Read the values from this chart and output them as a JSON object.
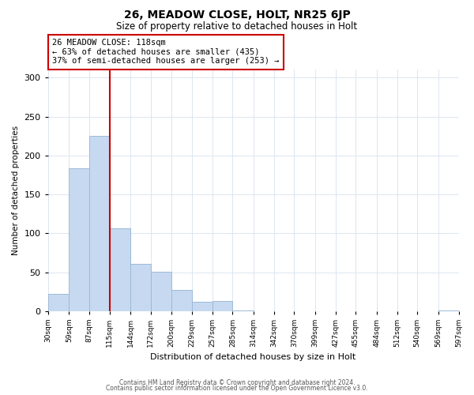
{
  "title": "26, MEADOW CLOSE, HOLT, NR25 6JP",
  "subtitle": "Size of property relative to detached houses in Holt",
  "xlabel": "Distribution of detached houses by size in Holt",
  "ylabel": "Number of detached properties",
  "bar_edges": [
    30,
    59,
    87,
    115,
    144,
    172,
    200,
    229,
    257,
    285,
    314,
    342,
    370,
    399,
    427,
    455,
    484,
    512,
    540,
    569,
    597
  ],
  "bar_heights": [
    22,
    184,
    225,
    106,
    61,
    51,
    27,
    12,
    13,
    1,
    0,
    0,
    0,
    0,
    0,
    0,
    0,
    0,
    0,
    1
  ],
  "bar_color": "#c6d9f0",
  "bar_edge_color": "#9dbad8",
  "vline_x": 115,
  "vline_color": "#cc0000",
  "annotation_title": "26 MEADOW CLOSE: 118sqm",
  "annotation_line1": "← 63% of detached houses are smaller (435)",
  "annotation_line2": "37% of semi-detached houses are larger (253) →",
  "annotation_box_color": "#ffffff",
  "annotation_box_edge": "#cc0000",
  "ylim": [
    0,
    310
  ],
  "xlim": [
    30,
    597
  ],
  "tick_labels": [
    "30sqm",
    "59sqm",
    "87sqm",
    "115sqm",
    "144sqm",
    "172sqm",
    "200sqm",
    "229sqm",
    "257sqm",
    "285sqm",
    "314sqm",
    "342sqm",
    "370sqm",
    "399sqm",
    "427sqm",
    "455sqm",
    "484sqm",
    "512sqm",
    "540sqm",
    "569sqm",
    "597sqm"
  ],
  "yticks": [
    0,
    50,
    100,
    150,
    200,
    250,
    300
  ],
  "footer1": "Contains HM Land Registry data © Crown copyright and database right 2024.",
  "footer2": "Contains public sector information licensed under the Open Government Licence v3.0.",
  "background_color": "#ffffff",
  "grid_color": "#dce6f0"
}
